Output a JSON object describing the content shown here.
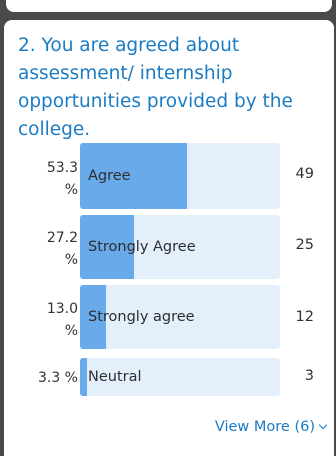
{
  "question": {
    "title": "2. You are agreed about assessment/ internship opportunities provided by the college."
  },
  "responses": [
    {
      "percent_text": "53.3\n%",
      "label": "Agree",
      "count": "49",
      "fraction": 0.533
    },
    {
      "percent_text": "27.2\n%",
      "label": "Strongly Agree",
      "count": "25",
      "fraction": 0.272
    },
    {
      "percent_text": "13.0\n%",
      "label": "Strongly agree",
      "count": "12",
      "fraction": 0.13
    },
    {
      "percent_text": "3.3 %",
      "label": "Neutral",
      "count": "3",
      "fraction": 0.033
    }
  ],
  "footer": {
    "view_more_label": "View More (6)",
    "view_more_icon": "chevron-down-icon"
  },
  "colors": {
    "accent": "#1b7cc4",
    "bar_fill": "#69aaeb",
    "bar_track": "#e3f0fc"
  }
}
